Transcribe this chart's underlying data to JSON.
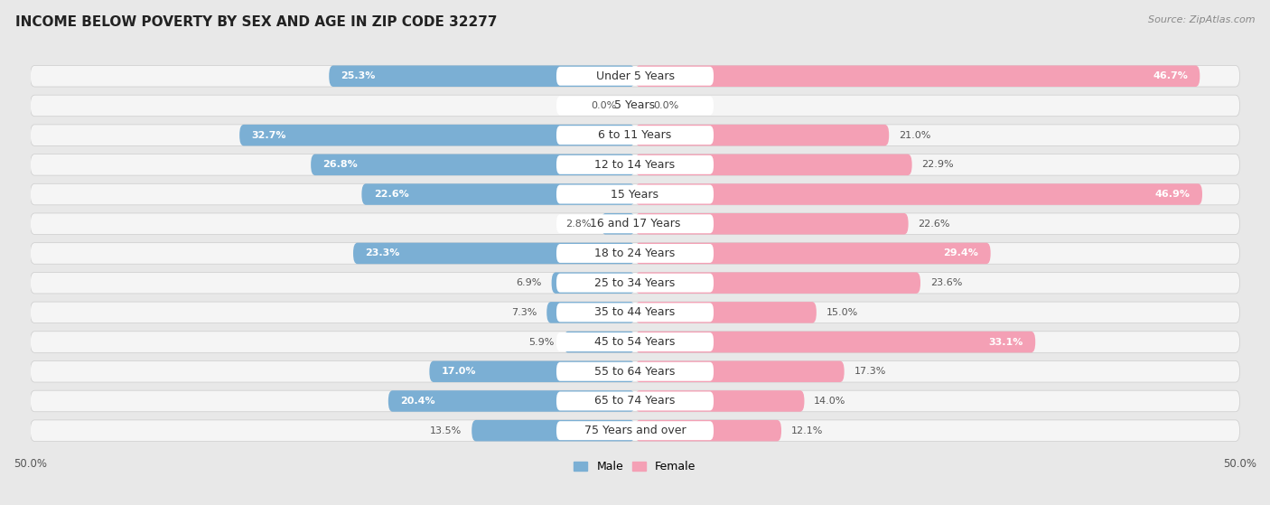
{
  "title": "INCOME BELOW POVERTY BY SEX AND AGE IN ZIP CODE 32277",
  "source": "Source: ZipAtlas.com",
  "categories": [
    "Under 5 Years",
    "5 Years",
    "6 to 11 Years",
    "12 to 14 Years",
    "15 Years",
    "16 and 17 Years",
    "18 to 24 Years",
    "25 to 34 Years",
    "35 to 44 Years",
    "45 to 54 Years",
    "55 to 64 Years",
    "65 to 74 Years",
    "75 Years and over"
  ],
  "male": [
    25.3,
    0.0,
    32.7,
    26.8,
    22.6,
    2.8,
    23.3,
    6.9,
    7.3,
    5.9,
    17.0,
    20.4,
    13.5
  ],
  "female": [
    46.7,
    0.0,
    21.0,
    22.9,
    46.9,
    22.6,
    29.4,
    23.6,
    15.0,
    33.1,
    17.3,
    14.0,
    12.1
  ],
  "male_color": "#7bafd4",
  "female_color": "#f4a0b5",
  "male_label": "Male",
  "female_label": "Female",
  "xlim": 50.0,
  "background_color": "#e8e8e8",
  "bar_background": "#f5f5f5",
  "title_fontsize": 11,
  "source_fontsize": 8,
  "label_fontsize": 8,
  "cat_fontsize": 9,
  "axis_label_fontsize": 8.5,
  "value_label_color_inside_male": "#ffffff",
  "value_label_color_inside_female": "#ffffff",
  "value_label_color_outside": "#555555",
  "male_inside_threshold": 15,
  "female_inside_threshold": 25
}
